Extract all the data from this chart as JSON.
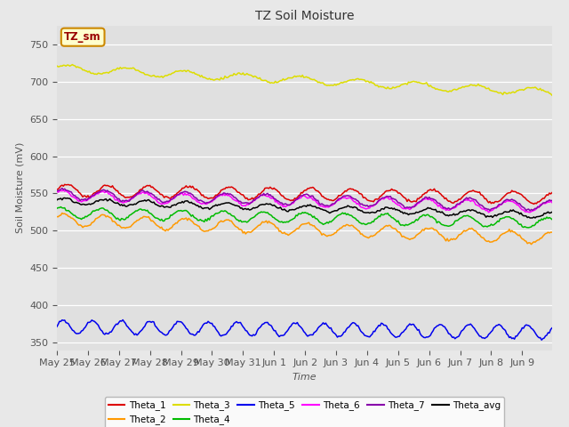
{
  "title": "TZ Soil Moisture",
  "xlabel": "Time",
  "ylabel": "Soil Moisture (mV)",
  "ylim": [
    340,
    775
  ],
  "yticks": [
    350,
    400,
    450,
    500,
    550,
    600,
    650,
    700,
    750
  ],
  "fig_bg_color": "#e8e8e8",
  "plot_bg_color": "#e0e0e0",
  "legend_label": "TZ_sm",
  "legend_bg": "#ffffcc",
  "legend_edge": "#cc8800",
  "legend_text_color": "#990000",
  "n_points": 384,
  "series": {
    "Theta_1": {
      "color": "#dd0000",
      "base": 554,
      "trend": -0.025,
      "amp": 8,
      "freq": 0.2,
      "phase": 0.0
    },
    "Theta_2": {
      "color": "#ff9900",
      "base": 515,
      "trend": -0.065,
      "amp": 8,
      "freq": 0.2,
      "phase": 0.5
    },
    "Theta_3": {
      "color": "#dddd00",
      "base": 718,
      "trend": -0.085,
      "amp": 5,
      "freq": 0.14,
      "phase": 0.3
    },
    "Theta_4": {
      "color": "#00bb00",
      "base": 524,
      "trend": -0.035,
      "amp": 7,
      "freq": 0.2,
      "phase": 1.0
    },
    "Theta_5": {
      "color": "#0000ee",
      "base": 371,
      "trend": -0.018,
      "amp": 9,
      "freq": 0.28,
      "phase": 0.2
    },
    "Theta_6": {
      "color": "#ff00ff",
      "base": 547,
      "trend": -0.04,
      "amp": 7,
      "freq": 0.2,
      "phase": 0.8
    },
    "Theta_7": {
      "color": "#8800aa",
      "base": 549,
      "trend": -0.04,
      "amp": 7,
      "freq": 0.2,
      "phase": 0.6
    },
    "Theta_avg": {
      "color": "#000000",
      "base": 540,
      "trend": -0.05,
      "amp": 4,
      "freq": 0.2,
      "phase": 0.4
    }
  },
  "tick_labels": [
    "May 25",
    "May 26",
    "May 27",
    "May 28",
    "May 29",
    "May 30",
    "May 31",
    "Jun 1",
    "Jun 2",
    "Jun 3",
    "Jun 4",
    "Jun 5",
    "Jun 6",
    "Jun 7",
    "Jun 8",
    "Jun 9"
  ],
  "tick_positions": [
    0,
    24,
    48,
    72,
    96,
    120,
    144,
    168,
    192,
    216,
    240,
    264,
    288,
    312,
    336,
    360
  ]
}
